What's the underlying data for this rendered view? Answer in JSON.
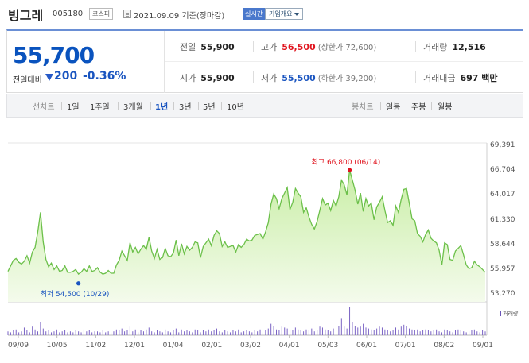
{
  "header": {
    "stock_name": "빙그레",
    "stock_code": "005180",
    "market": "코스피",
    "date_text": "2021.09.09 기준(장마감)",
    "realtime_label": "실시간",
    "company_info_label": "기업개요"
  },
  "price": {
    "current": "55,700",
    "change_label": "전일대비",
    "change_amount": "200",
    "change_rate": "-0.36%",
    "direction": "down"
  },
  "summary": {
    "prev_close_label": "전일",
    "prev_close": "55,900",
    "high_label": "고가",
    "high": "56,500",
    "upper_limit": "(상한가 72,600)",
    "volume_label": "거래량",
    "volume": "12,516",
    "open_label": "시가",
    "open": "55,900",
    "low_label": "저가",
    "low": "55,500",
    "lower_limit": "(하한가 39,200)",
    "amount_label": "거래대금",
    "amount": "697 백만"
  },
  "periods": {
    "line_chart_label": "선차트",
    "items": [
      "1일",
      "1주일",
      "3개월",
      "1년",
      "3년",
      "5년",
      "10년"
    ],
    "active": "1년",
    "candle_chart_label": "봉차트",
    "candle_items": [
      "일봉",
      "주봉",
      "월봉"
    ]
  },
  "chart_data": {
    "type": "area",
    "y_ticks": [
      "69,391",
      "66,704",
      "64,017",
      "61,330",
      "58,644",
      "55,957",
      "53,270"
    ],
    "ylim": [
      53270,
      69391
    ],
    "x_ticks": [
      "09/09",
      "10/05",
      "11/02",
      "12/01",
      "01/04",
      "02/01",
      "03/02",
      "04/01",
      "05/03",
      "06/01",
      "07/01",
      "08/02",
      "09/01"
    ],
    "high_annotation": "최고 66,800 (06/14)",
    "low_annotation": "최저 54,500 (10/29)",
    "high_point": {
      "date": "06/14",
      "value": 66800
    },
    "low_point": {
      "date": "10/29",
      "value": 54500
    },
    "volume_legend": "거래량",
    "line_color": "#6cc04a",
    "fill_color": "#dff5c8",
    "high_color": "#e0141e",
    "low_color": "#1a55c0",
    "values": [
      55800,
      56400,
      57000,
      57200,
      56800,
      56600,
      56900,
      57500,
      56700,
      57900,
      58400,
      60100,
      62200,
      59000,
      57100,
      56300,
      56700,
      56000,
      56400,
      55800,
      55900,
      56400,
      55700,
      55700,
      55800,
      56000,
      55500,
      55700,
      56100,
      55800,
      56400,
      55800,
      55900,
      56200,
      55700,
      55500,
      55600,
      55900,
      55600,
      55600,
      56500,
      57000,
      58000,
      57500,
      57000,
      58900,
      57900,
      58400,
      57700,
      58200,
      58600,
      58200,
      59500,
      58000,
      57200,
      58200,
      57100,
      57300,
      58300,
      57500,
      57400,
      57800,
      59200,
      57500,
      58800,
      57700,
      58500,
      58100,
      58400,
      59000,
      58900,
      57300,
      58500,
      58900,
      59300,
      58600,
      59700,
      60200,
      59900,
      58500,
      59000,
      58400,
      58500,
      58600,
      57900,
      58700,
      58400,
      58700,
      59300,
      59100,
      59200,
      59700,
      59800,
      59900,
      59300,
      60100,
      61100,
      63100,
      64200,
      63700,
      62600,
      63700,
      64300,
      64900,
      62500,
      63300,
      64800,
      64300,
      63900,
      62200,
      62700,
      61700,
      60900,
      60400,
      61200,
      62400,
      63700,
      63000,
      63200,
      62400,
      63500,
      62900,
      63900,
      65700,
      65200,
      64100,
      66800,
      65700,
      64600,
      63100,
      64300,
      62300,
      63700,
      62900,
      63200,
      61400,
      62800,
      63300,
      63900,
      62400,
      61100,
      61300,
      60800,
      62900,
      62200,
      63600,
      64700,
      64800,
      63200,
      61500,
      61300,
      59900,
      59600,
      59000,
      59800,
      60300,
      59400,
      59100,
      58900,
      58100,
      56500,
      58900,
      58700,
      57100,
      57000,
      58000,
      58300,
      58600,
      57600,
      56500,
      56100,
      56200,
      56900,
      56500,
      56300,
      56000,
      55700
    ],
    "volumes": [
      4,
      3,
      5,
      6,
      3,
      4,
      8,
      5,
      3,
      9,
      6,
      4,
      14,
      7,
      4,
      5,
      3,
      4,
      6,
      3,
      4,
      5,
      3,
      4,
      3,
      5,
      4,
      3,
      6,
      4,
      5,
      3,
      4,
      4,
      3,
      5,
      3,
      4,
      3,
      4,
      6,
      5,
      7,
      4,
      5,
      9,
      4,
      6,
      3,
      5,
      4,
      6,
      8,
      4,
      3,
      5,
      4,
      3,
      6,
      4,
      3,
      5,
      7,
      3,
      6,
      4,
      5,
      4,
      3,
      6,
      5,
      3,
      5,
      4,
      6,
      4,
      5,
      7,
      4,
      3,
      5,
      4,
      3,
      5,
      4,
      6,
      3,
      4,
      5,
      4,
      3,
      5,
      4,
      6,
      3,
      5,
      7,
      12,
      10,
      6,
      5,
      9,
      8,
      7,
      6,
      5,
      8,
      6,
      5,
      4,
      6,
      5,
      7,
      4,
      5,
      9,
      8,
      6,
      5,
      4,
      7,
      5,
      10,
      18,
      9,
      7,
      30,
      14,
      10,
      8,
      9,
      12,
      8,
      7,
      6,
      5,
      7,
      9,
      8,
      6,
      5,
      4,
      5,
      8,
      6,
      9,
      11,
      10,
      7,
      6,
      5,
      6,
      4,
      5,
      6,
      5,
      4,
      5,
      6,
      4,
      3,
      6,
      5,
      4,
      3,
      5,
      6,
      5,
      4,
      3,
      4,
      5,
      6,
      4,
      3,
      5,
      4
    ]
  }
}
